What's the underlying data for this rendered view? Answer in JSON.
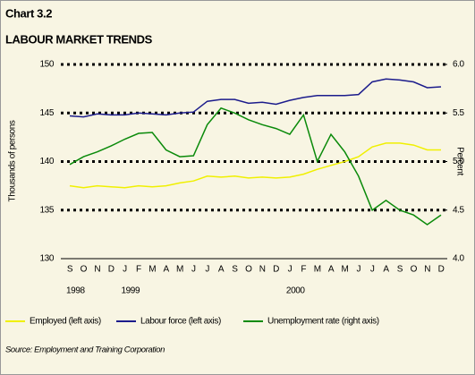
{
  "chart_data": {
    "type": "line",
    "title": "Chart 3.2",
    "subtitle": "LABOUR MARKET TRENDS",
    "y_label": "Thousands of persons",
    "y2_label": "Percent",
    "source": "Source: Employment and Training Corporation",
    "groups": [
      {
        "year": "1998",
        "months": [
          "S",
          "O",
          "N",
          "D"
        ]
      },
      {
        "year": "1999",
        "months": [
          "J",
          "F",
          "M",
          "A",
          "M",
          "J",
          "J",
          "A",
          "S",
          "O",
          "N",
          "D"
        ]
      },
      {
        "year": "2000",
        "months": [
          "J",
          "F",
          "M",
          "A",
          "M",
          "J",
          "J",
          "A",
          "S",
          "O",
          "N",
          "D"
        ]
      }
    ],
    "ylim": [
      130,
      150
    ],
    "yticks": [
      130,
      135,
      140,
      145,
      150
    ],
    "y2lim": [
      4.0,
      6.0
    ],
    "y2ticks": [
      {
        "value": 4.0,
        "label": "4.0"
      },
      {
        "value": 4.5,
        "label": "4.5"
      },
      {
        "value": 5.0,
        "label": "5.0"
      },
      {
        "value": 5.5,
        "label": "5.5"
      },
      {
        "value": 6.0,
        "label": "6.0"
      }
    ],
    "grid": true,
    "series": [
      {
        "name": "Employed (left axis)",
        "color": "#f0f000",
        "values": [
          137.5,
          137.3,
          137.5,
          137.4,
          137.3,
          137.5,
          137.4,
          137.5,
          137.8,
          138.0,
          138.5,
          138.4,
          138.5,
          138.3,
          138.4,
          138.3,
          138.4,
          138.7,
          139.2,
          139.6,
          140.0,
          140.5,
          141.5,
          141.9,
          141.9,
          141.7,
          141.2,
          141.2
        ]
      },
      {
        "name": "Labour force (left axis)",
        "color": "#1c1c8c",
        "values": [
          144.7,
          144.6,
          144.9,
          144.8,
          144.8,
          145.0,
          144.9,
          144.8,
          145.0,
          145.1,
          146.2,
          146.4,
          146.4,
          146.0,
          146.1,
          145.9,
          146.3,
          146.6,
          146.8,
          146.8,
          146.8,
          146.9,
          148.2,
          148.5,
          148.4,
          148.2,
          147.6,
          147.7
        ]
      },
      {
        "name": "Unemployment rate (right axis)",
        "color": "#0a8a0a",
        "axis": "y2",
        "values": [
          4.97,
          5.05,
          5.1,
          5.16,
          5.23,
          5.29,
          5.3,
          5.12,
          5.05,
          5.06,
          5.38,
          5.55,
          5.5,
          5.43,
          5.38,
          5.34,
          5.28,
          5.48,
          5.0,
          5.28,
          5.1,
          4.85,
          4.5,
          4.6,
          4.5,
          4.45,
          4.35,
          4.45
        ]
      }
    ]
  }
}
